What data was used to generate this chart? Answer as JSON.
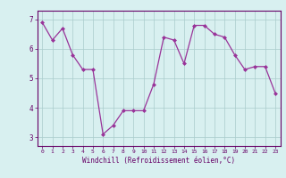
{
  "x": [
    0,
    1,
    2,
    3,
    4,
    5,
    6,
    7,
    8,
    9,
    10,
    11,
    12,
    13,
    14,
    15,
    16,
    17,
    18,
    19,
    20,
    21,
    22,
    23
  ],
  "y": [
    6.9,
    6.3,
    6.7,
    5.8,
    5.3,
    5.3,
    3.1,
    3.4,
    3.9,
    3.9,
    3.9,
    4.8,
    6.4,
    6.3,
    5.5,
    6.8,
    6.8,
    6.5,
    6.4,
    5.8,
    5.3,
    5.4,
    5.4,
    4.5
  ],
  "xlim": [
    -0.5,
    23.5
  ],
  "ylim": [
    2.7,
    7.3
  ],
  "yticks": [
    3,
    4,
    5,
    6,
    7
  ],
  "xticks": [
    0,
    1,
    2,
    3,
    4,
    5,
    6,
    7,
    8,
    9,
    10,
    11,
    12,
    13,
    14,
    15,
    16,
    17,
    18,
    19,
    20,
    21,
    22,
    23
  ],
  "xlabel": "Windchill (Refroidissement éolien,°C)",
  "line_color": "#993399",
  "marker": "D",
  "marker_size": 2.0,
  "bg_color": "#d8f0f0",
  "grid_color": "#aacccc",
  "axis_color": "#660066",
  "tick_label_color": "#660066",
  "linewidth": 0.9,
  "xlabel_fontsize": 5.5,
  "xtick_fontsize": 4.5,
  "ytick_fontsize": 5.5
}
